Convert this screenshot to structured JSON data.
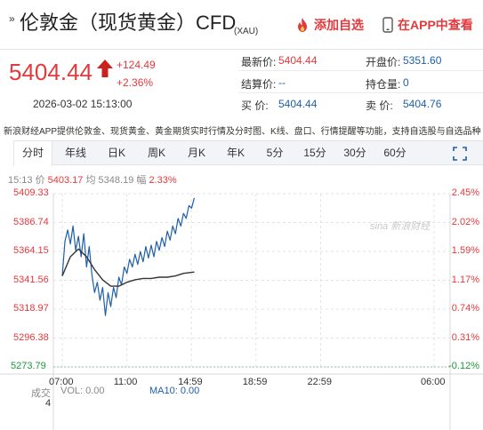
{
  "header": {
    "arrows": "»",
    "title": "伦敦金（现货黄金）CFD",
    "code": "(XAU)",
    "add_watchlist": "添加自选",
    "view_in_app": "在APP中查看"
  },
  "quote": {
    "price": "5404.44",
    "change": "+124.49",
    "change_pct": "+2.36%",
    "datetime": "2026-03-02 15:13:00",
    "latest_label": "最新价:",
    "latest_value": "5404.44",
    "open_label": "开盘价:",
    "open_value": "5351.60",
    "settle_label": "结算价:",
    "settle_value": "--",
    "position_label": "持仓量:",
    "position_value": "0",
    "buy_label": "买  价:",
    "buy_value": "5404.44",
    "sell_label": "卖  价:",
    "sell_value": "5404.76"
  },
  "notice": "新浪财经APP提供伦敦金、现货黄金、黄金期货实时行情及分时图、K线、盘口、行情提醒等功能，支持自选股与自选品种",
  "tabs": [
    {
      "label": "分时",
      "active": true
    },
    {
      "label": "年线",
      "active": false
    },
    {
      "label": "日K",
      "active": false
    },
    {
      "label": "周K",
      "active": false
    },
    {
      "label": "月K",
      "active": false
    },
    {
      "label": "年K",
      "active": false
    },
    {
      "label": "5分",
      "active": false
    },
    {
      "label": "15分",
      "active": false
    },
    {
      "label": "30分",
      "active": false
    },
    {
      "label": "60分",
      "active": false
    }
  ],
  "info": {
    "time": "15:13",
    "price_label": "价",
    "price": "5403.17",
    "avg_label": "均",
    "avg": "5348.19",
    "amp_label": "幅",
    "amp": "2.33%"
  },
  "chart_data": {
    "type": "line",
    "watermark": "sina 新浪财经",
    "y_left_ticks": [
      "5409.33",
      "5386.74",
      "5364.15",
      "5341.56",
      "5318.97",
      "5296.38",
      "5273.79"
    ],
    "y_right_ticks": [
      "2.45%",
      "2.02%",
      "1.59%",
      "1.17%",
      "0.74%",
      "0.31%",
      "-0.12%"
    ],
    "x_ticks": [
      "07:00",
      "11:00",
      "14:59",
      "18:59",
      "22:59",
      "06:00"
    ],
    "ylim": [
      5273.79,
      5409.33
    ],
    "prev_close": 5280.0,
    "series": [
      {
        "kind": "price",
        "color": "#1f5fa8",
        "x": [
          "07:00",
          "07:10",
          "07:20",
          "07:30",
          "07:40",
          "07:50",
          "08:00",
          "08:10",
          "08:20",
          "08:30",
          "08:40",
          "08:50",
          "09:00",
          "09:10",
          "09:20",
          "09:30",
          "09:40",
          "09:50",
          "10:00",
          "10:10",
          "10:20",
          "10:30",
          "10:40",
          "10:50",
          "11:00",
          "11:10",
          "11:20",
          "11:30",
          "11:40",
          "11:50",
          "12:00",
          "12:10",
          "12:20",
          "12:30",
          "12:40",
          "12:50",
          "13:00",
          "13:10",
          "13:20",
          "13:30",
          "13:40",
          "13:50",
          "14:00",
          "14:10",
          "14:20",
          "14:30",
          "14:40",
          "14:50",
          "15:00",
          "15:10"
        ],
        "values": [
          5345,
          5372,
          5381,
          5370,
          5384,
          5365,
          5376,
          5360,
          5378,
          5352,
          5368,
          5346,
          5332,
          5340,
          5326,
          5336,
          5314,
          5332,
          5321,
          5336,
          5328,
          5344,
          5338,
          5352,
          5347,
          5358,
          5352,
          5362,
          5354,
          5364,
          5356,
          5368,
          5359,
          5369,
          5360,
          5372,
          5365,
          5375,
          5368,
          5380,
          5373,
          5384,
          5378,
          5390,
          5384,
          5394,
          5390,
          5400,
          5398,
          5406
        ]
      },
      {
        "kind": "average",
        "color": "#333333",
        "x": [
          "07:00",
          "07:30",
          "08:00",
          "08:30",
          "09:00",
          "09:30",
          "10:00",
          "10:30",
          "11:00",
          "11:30",
          "12:00",
          "12:30",
          "13:00",
          "13:30",
          "14:00",
          "14:30",
          "15:10"
        ],
        "values": [
          5345,
          5360,
          5366,
          5360,
          5350,
          5342,
          5337,
          5337,
          5340,
          5342,
          5343,
          5343,
          5344,
          5344,
          5345,
          5347,
          5348
        ]
      }
    ],
    "volume": {
      "label": "成交",
      "value_label": "4",
      "vol_label": "VOL:",
      "vol_value": "0.00",
      "ma10_label": "MA10:",
      "ma10_value": "0.00"
    }
  },
  "colors": {
    "up": "#e4393c",
    "down": "#1a9a3a",
    "price_line": "#1f5fa8",
    "avg_line": "#333333"
  }
}
